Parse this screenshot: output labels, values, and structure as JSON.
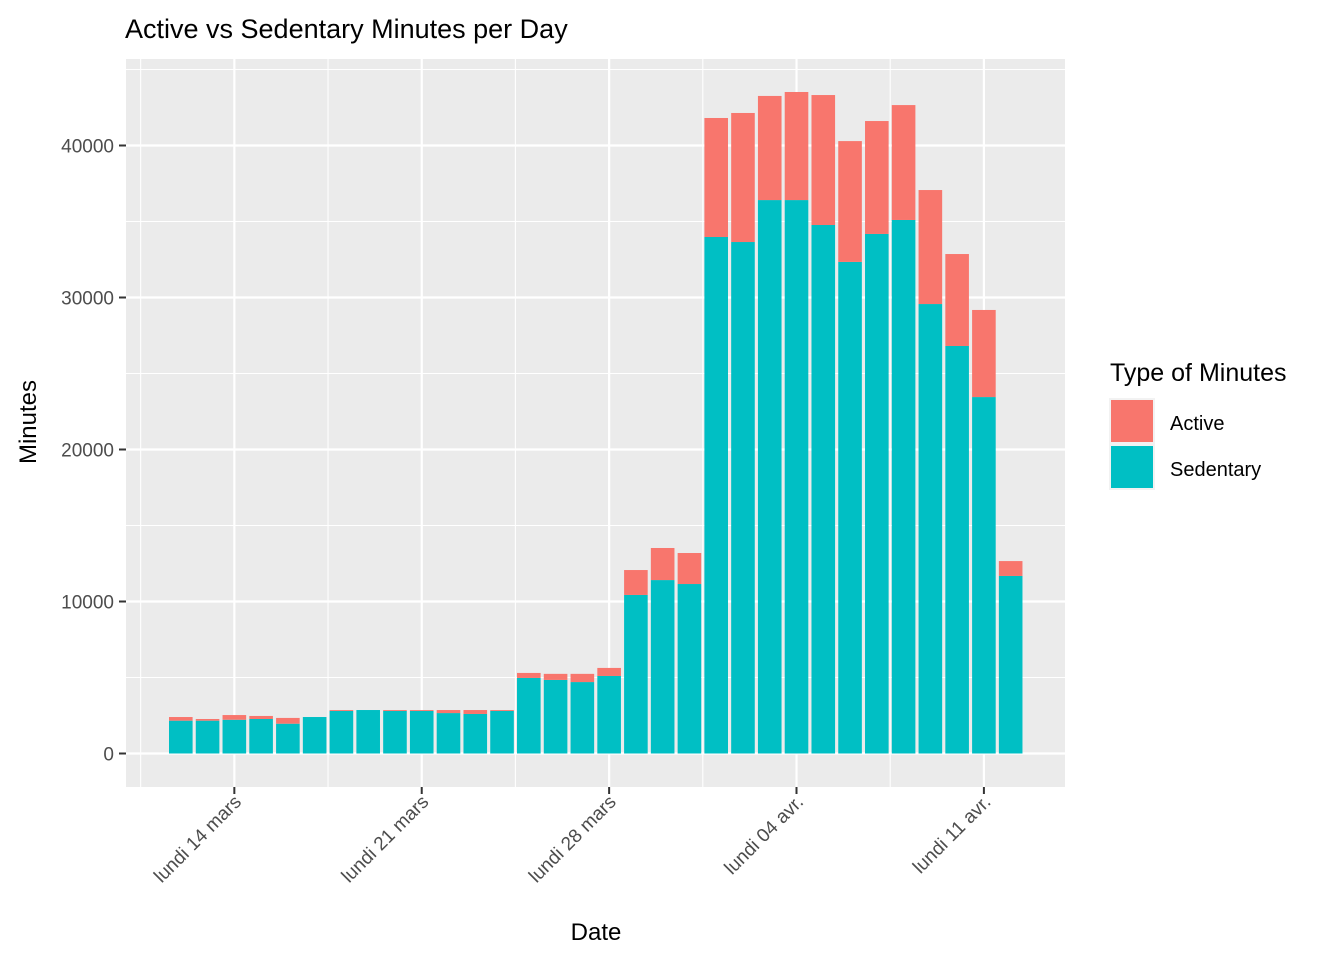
{
  "chart_data": {
    "type": "bar",
    "stacked": true,
    "title": "Active vs Sedentary Minutes per Day",
    "xlabel": "Date",
    "ylabel": "Minutes",
    "ylim": [
      -2100,
      44500
    ],
    "yticks": [
      0,
      10000,
      20000,
      30000,
      40000
    ],
    "ytick_labels": [
      "0",
      "10000",
      "20000",
      "30000",
      "40000"
    ],
    "x_start_date": "2022-03-12",
    "xticks": [
      {
        "day_index": 2,
        "label": "lundi 14 mars"
      },
      {
        "day_index": 9,
        "label": "lundi 21 mars"
      },
      {
        "day_index": 16,
        "label": "lundi 28 mars"
      },
      {
        "day_index": 23,
        "label": "lundi 04 avr."
      },
      {
        "day_index": 30,
        "label": "lundi 11 avr."
      }
    ],
    "grid": true,
    "legend": {
      "title": "Type of Minutes",
      "position": "right",
      "entries": [
        {
          "name": "Active",
          "color": "#F8766D"
        },
        {
          "name": "Sedentary",
          "color": "#00BFC4"
        }
      ]
    },
    "categories": [
      "2022-03-12",
      "2022-03-13",
      "2022-03-14",
      "2022-03-15",
      "2022-03-16",
      "2022-03-17",
      "2022-03-18",
      "2022-03-19",
      "2022-03-20",
      "2022-03-21",
      "2022-03-22",
      "2022-03-23",
      "2022-03-24",
      "2022-03-25",
      "2022-03-26",
      "2022-03-27",
      "2022-03-28",
      "2022-03-29",
      "2022-03-30",
      "2022-03-31",
      "2022-04-01",
      "2022-04-02",
      "2022-04-03",
      "2022-04-04",
      "2022-04-05",
      "2022-04-06",
      "2022-04-07",
      "2022-04-08",
      "2022-04-09",
      "2022-04-10",
      "2022-04-11",
      "2022-04-12"
    ],
    "series": [
      {
        "name": "Sedentary",
        "color": "#00BFC4",
        "values": [
          2160,
          2160,
          2220,
          2270,
          1960,
          2400,
          2800,
          2860,
          2800,
          2800,
          2660,
          2600,
          2800,
          4970,
          4840,
          4700,
          5100,
          10430,
          11410,
          11150,
          33980,
          33650,
          36410,
          36410,
          34770,
          32340,
          34180,
          35100,
          29570,
          26810,
          23450,
          11680
        ]
      },
      {
        "name": "Active",
        "color": "#F8766D",
        "values": [
          240,
          110,
          310,
          200,
          380,
          0,
          60,
          0,
          60,
          60,
          200,
          260,
          60,
          330,
          400,
          540,
          530,
          1640,
          2110,
          2040,
          7830,
          8490,
          6850,
          7110,
          8550,
          7950,
          7430,
          7560,
          7500,
          6050,
          5730,
          980
        ]
      }
    ]
  },
  "style": {
    "panel_bg": "#EBEBEB",
    "grid_color": "#FFFFFF",
    "tick_color": "#333333"
  }
}
